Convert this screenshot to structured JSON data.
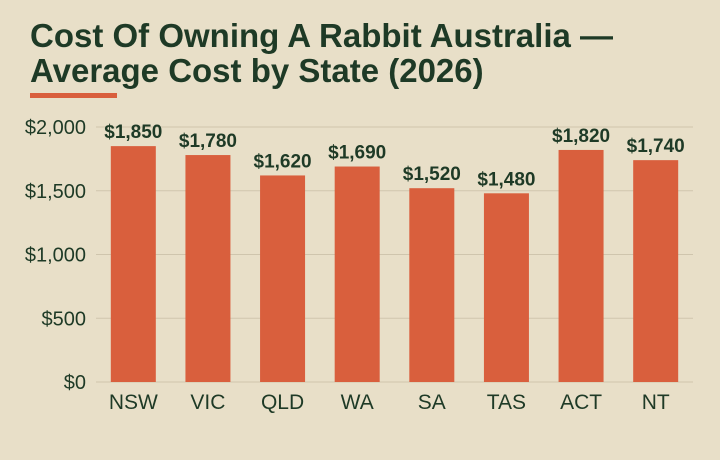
{
  "page": {
    "title": "Cost Of Owning A Rabbit Australia — Average Cost by State (2026)"
  },
  "colors": {
    "background": "#e8dfc8",
    "bar": "#d95f3d",
    "text": "#1e3a26",
    "grid": "#cfc5ad",
    "accent_rule": "#d95f3d"
  },
  "chart_data": {
    "type": "bar",
    "title": "Cost Of Owning A Rabbit Australia — Average Cost by State (2026)",
    "xlabel": "",
    "ylabel": "",
    "categories": [
      "NSW",
      "VIC",
      "QLD",
      "WA",
      "SA",
      "TAS",
      "ACT",
      "NT"
    ],
    "values": [
      1850,
      1780,
      1620,
      1690,
      1520,
      1480,
      1820,
      1740
    ],
    "value_labels": [
      "$1,850",
      "$1,780",
      "$1,620",
      "$1,690",
      "$1,520",
      "$1,480",
      "$1,820",
      "$1,740"
    ],
    "ylim": [
      0,
      2000
    ],
    "yticks": [
      0,
      500,
      1000,
      1500,
      2000
    ],
    "ytick_labels": [
      "$0",
      "$500",
      "$1,000",
      "$1,500",
      "$2,000"
    ],
    "grid": true,
    "legend": "none"
  }
}
